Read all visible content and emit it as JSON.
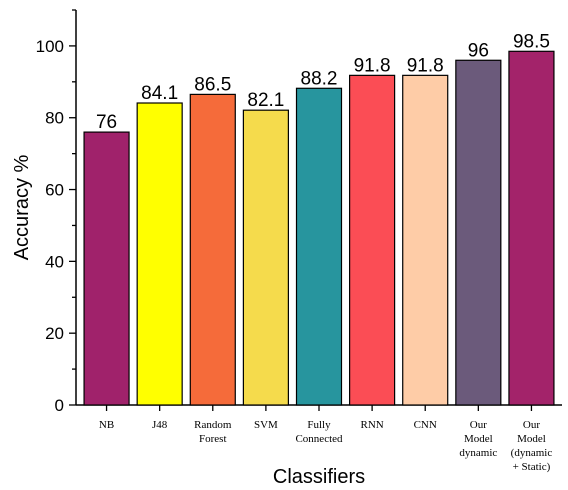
{
  "chart_data": {
    "type": "bar",
    "title": "",
    "xlabel": "Classifiers",
    "ylabel": "Accuracy %",
    "ylim": [
      0,
      110
    ],
    "yticks": [
      0,
      20,
      40,
      60,
      80,
      100
    ],
    "grid": false,
    "legend": "none",
    "categories": [
      [
        "NB"
      ],
      [
        "J48"
      ],
      [
        "Random",
        "Forest"
      ],
      [
        "SVM"
      ],
      [
        "Fully",
        "Connected"
      ],
      [
        "RNN"
      ],
      [
        "CNN"
      ],
      [
        "Our",
        "Model",
        "dynamic"
      ],
      [
        "Our",
        "Model",
        "(dynamic",
        "+ Static)"
      ]
    ],
    "values": [
      76,
      84.1,
      86.5,
      82.1,
      88.2,
      91.8,
      91.8,
      96,
      98.5
    ],
    "value_labels": [
      "76",
      "84.1",
      "86.5",
      "82.1",
      "88.2",
      "91.8",
      "91.8",
      "96",
      "98.5"
    ],
    "colors": [
      "#A0226B",
      "#FFFF00",
      "#F56B3A",
      "#F5DB4C",
      "#27959E",
      "#FB4D55",
      "#FECCA7",
      "#6B5A7B",
      "#A3236A"
    ]
  }
}
